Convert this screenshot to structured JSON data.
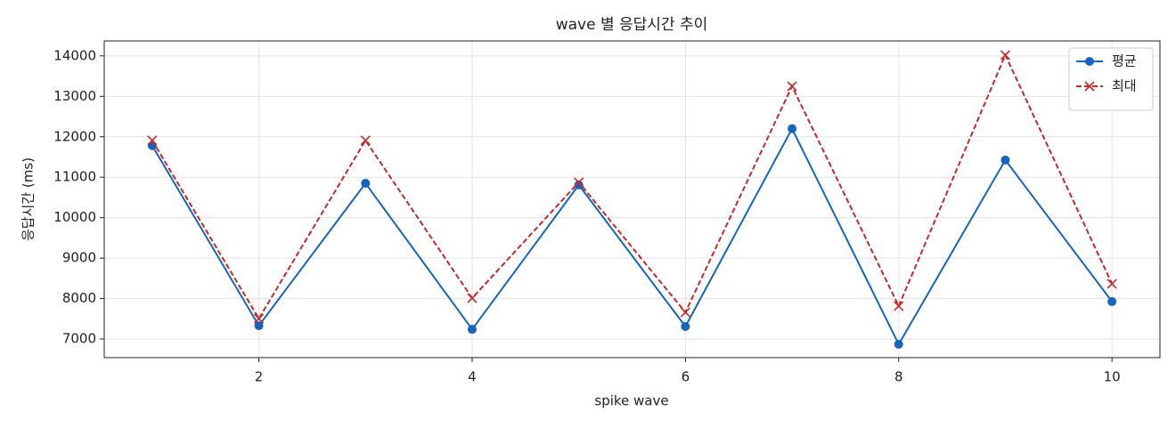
{
  "chart_data": {
    "type": "line",
    "title": "wave 별 응답시간 추이",
    "x_label": "spike wave",
    "y_label": "응답시간 (ms)",
    "x": [
      1,
      2,
      3,
      4,
      5,
      6,
      7,
      8,
      9,
      10
    ],
    "series": [
      {
        "name": "평균",
        "color": "#1565c0",
        "marker": "o",
        "linestyle": "solid",
        "values": [
          11780,
          7330,
          10850,
          7240,
          10810,
          7310,
          12200,
          6870,
          11425,
          7925
        ]
      },
      {
        "name": "최대",
        "color": "#c62828",
        "marker": "x",
        "linestyle": "dashed",
        "values": [
          11910,
          7505,
          11910,
          8010,
          10875,
          7660,
          13250,
          7815,
          14020,
          8365
        ]
      }
    ],
    "xlim": [
      0.55,
      10.45
    ],
    "ylim": [
      6540,
      14370
    ],
    "xticks": [
      2,
      4,
      6,
      8,
      10
    ],
    "yticks": [
      7000,
      8000,
      9000,
      10000,
      11000,
      12000,
      13000,
      14000
    ],
    "grid": true,
    "legend": "upper right"
  }
}
